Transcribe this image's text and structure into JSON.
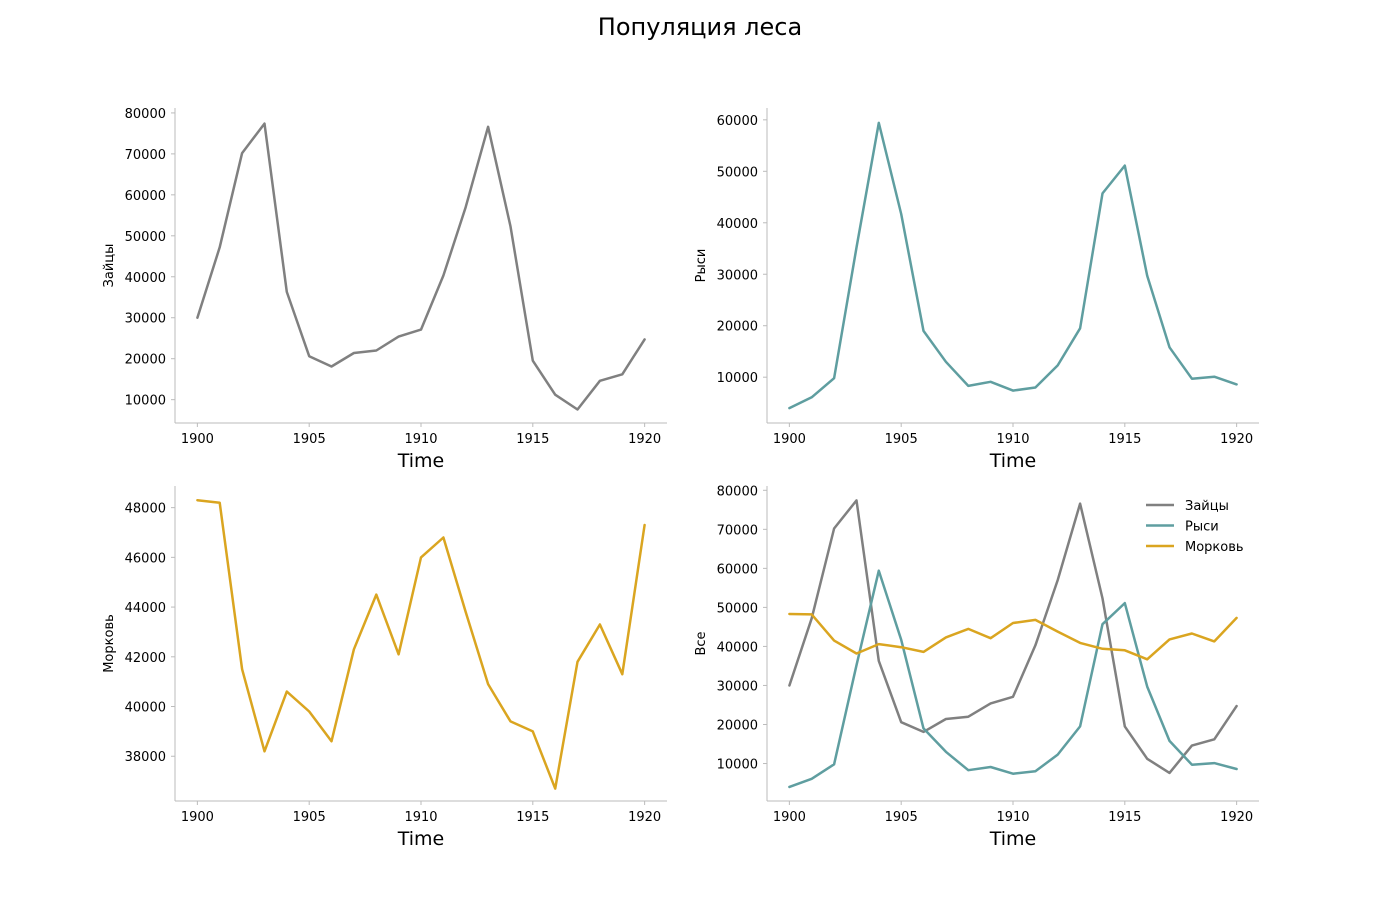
{
  "figure": {
    "title": "Популяция леса"
  },
  "chart_data": [
    {
      "type": "line",
      "id": "hares",
      "xlabel": "Time",
      "ylabel": "Зайцы",
      "x": [
        1900,
        1901,
        1902,
        1903,
        1904,
        1905,
        1906,
        1907,
        1908,
        1909,
        1910,
        1911,
        1912,
        1913,
        1914,
        1915,
        1916,
        1917,
        1918,
        1919,
        1920
      ],
      "xlim": [
        1899,
        1921
      ],
      "ylim": [
        4300,
        81200
      ],
      "xticks": [
        1900,
        1905,
        1910,
        1915,
        1920
      ],
      "yticks": [
        10000,
        20000,
        30000,
        40000,
        50000,
        60000,
        70000,
        80000
      ],
      "grid": false,
      "series": [
        {
          "name": "Зайцы",
          "color": "#808080",
          "values": [
            30000,
            47200,
            70200,
            77400,
            36300,
            20600,
            18100,
            21400,
            22000,
            25400,
            27100,
            40300,
            57000,
            76600,
            52300,
            19500,
            11200,
            7600,
            14600,
            16200,
            24700
          ]
        }
      ]
    },
    {
      "type": "line",
      "id": "lynx",
      "xlabel": "Time",
      "ylabel": "Рыси",
      "x": [
        1900,
        1901,
        1902,
        1903,
        1904,
        1905,
        1906,
        1907,
        1908,
        1909,
        1910,
        1911,
        1912,
        1913,
        1914,
        1915,
        1916,
        1917,
        1918,
        1919,
        1920
      ],
      "xlim": [
        1899,
        1921
      ],
      "ylim": [
        1100,
        62300
      ],
      "xticks": [
        1900,
        1905,
        1910,
        1915,
        1920
      ],
      "yticks": [
        10000,
        20000,
        30000,
        40000,
        50000,
        60000
      ],
      "grid": false,
      "series": [
        {
          "name": "Рыси",
          "color": "#5f9ea0",
          "values": [
            4000,
            6100,
            9800,
            35200,
            59400,
            41700,
            19000,
            13000,
            8300,
            9100,
            7400,
            8000,
            12300,
            19500,
            45700,
            51100,
            29700,
            15800,
            9700,
            10100,
            8600
          ]
        }
      ]
    },
    {
      "type": "line",
      "id": "carrots",
      "xlabel": "Time",
      "ylabel": "Морковь",
      "x": [
        1900,
        1901,
        1902,
        1903,
        1904,
        1905,
        1906,
        1907,
        1908,
        1909,
        1910,
        1911,
        1912,
        1913,
        1914,
        1915,
        1916,
        1917,
        1918,
        1919,
        1920
      ],
      "xlim": [
        1899,
        1921
      ],
      "ylim": [
        36200,
        48870
      ],
      "xticks": [
        1900,
        1905,
        1910,
        1915,
        1920
      ],
      "yticks": [
        38000,
        40000,
        42000,
        44000,
        46000,
        48000
      ],
      "grid": false,
      "series": [
        {
          "name": "Морковь",
          "color": "#daa520",
          "values": [
            48300,
            48200,
            41500,
            38200,
            40600,
            39800,
            38600,
            42300,
            44500,
            42100,
            46000,
            46800,
            43800,
            40900,
            39400,
            39000,
            36700,
            41800,
            43300,
            41300,
            47300
          ]
        }
      ]
    },
    {
      "type": "line",
      "id": "all",
      "xlabel": "Time",
      "ylabel": "Все",
      "x": [
        1900,
        1901,
        1902,
        1903,
        1904,
        1905,
        1906,
        1907,
        1908,
        1909,
        1910,
        1911,
        1912,
        1913,
        1914,
        1915,
        1916,
        1917,
        1918,
        1919,
        1920
      ],
      "xlim": [
        1899,
        1921
      ],
      "ylim": [
        400,
        81100
      ],
      "xticks": [
        1900,
        1905,
        1910,
        1915,
        1920
      ],
      "yticks": [
        10000,
        20000,
        30000,
        40000,
        50000,
        60000,
        70000,
        80000
      ],
      "grid": false,
      "legend": "top-right",
      "series": [
        {
          "name": "Зайцы",
          "color": "#808080",
          "values": [
            30000,
            47200,
            70200,
            77400,
            36300,
            20600,
            18100,
            21400,
            22000,
            25400,
            27100,
            40300,
            57000,
            76600,
            52300,
            19500,
            11200,
            7600,
            14600,
            16200,
            24700
          ]
        },
        {
          "name": "Рыси",
          "color": "#5f9ea0",
          "values": [
            4000,
            6100,
            9800,
            35200,
            59400,
            41700,
            19000,
            13000,
            8300,
            9100,
            7400,
            8000,
            12300,
            19500,
            45700,
            51100,
            29700,
            15800,
            9700,
            10100,
            8600
          ]
        },
        {
          "name": "Морковь",
          "color": "#daa520",
          "values": [
            48300,
            48200,
            41500,
            38200,
            40600,
            39800,
            38600,
            42300,
            44500,
            42100,
            46000,
            46800,
            43800,
            40900,
            39400,
            39000,
            36700,
            41800,
            43300,
            41300,
            47300
          ]
        }
      ]
    }
  ]
}
